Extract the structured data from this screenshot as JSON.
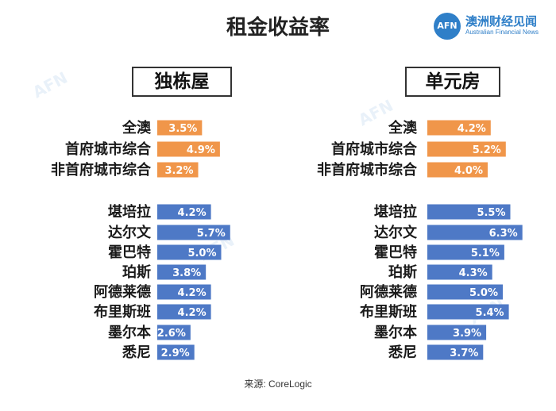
{
  "title": "租金收益率",
  "logo": {
    "icon": "afn-logo-icon",
    "mark": "AFN",
    "name_cn": "澳洲财经见闻",
    "name_en": "Australian Financial News"
  },
  "source": "来源:   CoreLogic",
  "colors": {
    "summary_bar": "#f0964a",
    "city_bar": "#4e79c6"
  },
  "chart_data": [
    {
      "type": "bar",
      "orientation": "horizontal",
      "title": "独栋屋",
      "categories": [
        "全澳",
        "首府城市综合",
        "非首府城市综合",
        "堪培拉",
        "达尔文",
        "霍巴特",
        "珀斯",
        "阿德莱德",
        "布里斯班",
        "墨尔本",
        "悉尼"
      ],
      "values": [
        3.5,
        4.9,
        3.2,
        4.2,
        5.7,
        5.0,
        3.8,
        4.2,
        4.2,
        2.6,
        2.9
      ],
      "labels": [
        "3.5%",
        "4.9%",
        "3.2%",
        "4.2%",
        "5.7%",
        "5.0%",
        "3.8%",
        "4.2%",
        "4.2%",
        "2.6%",
        "2.9%"
      ],
      "unit": "%",
      "groups": [
        "summary",
        "summary",
        "summary",
        "city",
        "city",
        "city",
        "city",
        "city",
        "city",
        "city",
        "city"
      ]
    },
    {
      "type": "bar",
      "orientation": "horizontal",
      "title": "单元房",
      "categories": [
        "全澳",
        "首府城市综合",
        "非首府城市综合",
        "堪培拉",
        "达尔文",
        "霍巴特",
        "珀斯",
        "阿德莱德",
        "布里斯班",
        "墨尔本",
        "悉尼"
      ],
      "values": [
        4.2,
        5.2,
        4.0,
        5.5,
        6.3,
        5.1,
        4.3,
        5.0,
        5.4,
        3.9,
        3.7
      ],
      "labels": [
        "4.2%",
        "5.2%",
        "4.0%",
        "5.5%",
        "6.3%",
        "5.1%",
        "4.3%",
        "5.0%",
        "5.4%",
        "3.9%",
        "3.7%"
      ],
      "unit": "%",
      "groups": [
        "summary",
        "summary",
        "summary",
        "city",
        "city",
        "city",
        "city",
        "city",
        "city",
        "city",
        "city"
      ]
    }
  ]
}
